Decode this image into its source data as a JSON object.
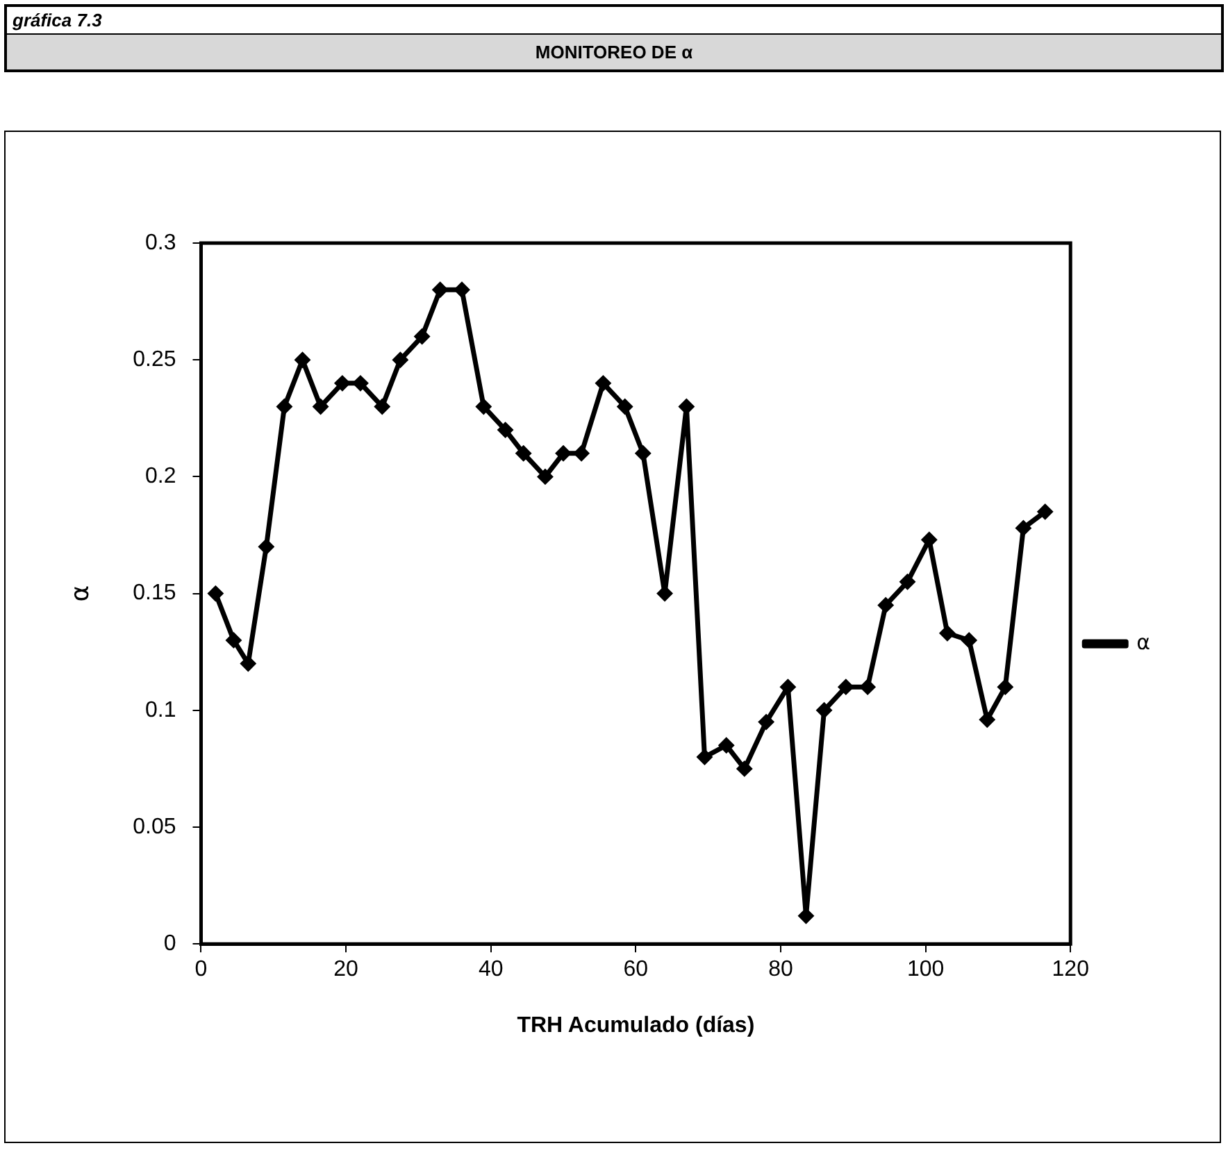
{
  "chart_data": {
    "type": "line",
    "title": "MONITOREO DE α",
    "subtitle": "gráfica 7.3",
    "xlabel": "TRH Acumulado (días)",
    "ylabel": "α",
    "x": [
      2,
      4.5,
      6.5,
      9,
      11.5,
      14,
      16.5,
      19.5,
      22,
      25,
      27.5,
      30.5,
      33,
      36,
      39,
      42,
      44.5,
      47.5,
      50,
      52.5,
      55.5,
      58.5,
      61,
      64,
      67,
      69.5,
      72.5,
      75,
      78,
      81,
      83.5,
      86,
      89,
      92,
      94.5,
      97.5,
      100.5,
      103,
      106,
      108.5,
      111,
      113.5,
      116.5
    ],
    "series": [
      {
        "name": "α",
        "color": "#000000",
        "values": [
          0.15,
          0.13,
          0.12,
          0.17,
          0.23,
          0.25,
          0.23,
          0.24,
          0.24,
          0.23,
          0.25,
          0.26,
          0.28,
          0.28,
          0.23,
          0.22,
          0.21,
          0.2,
          0.21,
          0.21,
          0.24,
          0.23,
          0.21,
          0.15,
          0.23,
          0.08,
          0.085,
          0.075,
          0.095,
          0.11,
          0.012,
          0.1,
          0.11,
          0.11,
          0.145,
          0.155,
          0.173,
          0.133,
          0.13,
          0.096,
          0.11,
          0.178,
          0.185
        ]
      }
    ],
    "xlim": [
      0,
      120
    ],
    "xticks": [
      0,
      20,
      40,
      60,
      80,
      100,
      120
    ],
    "ylim": [
      0,
      0.3
    ],
    "yticks": [
      0,
      0.05,
      0.1,
      0.15,
      0.2,
      0.25,
      0.3
    ],
    "grid": false,
    "legend": "right",
    "marker": "diamond",
    "line_style": "solid"
  }
}
